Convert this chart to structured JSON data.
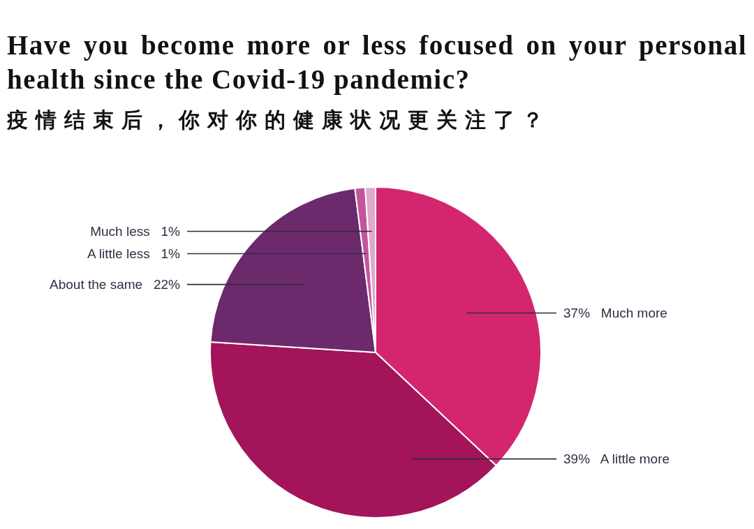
{
  "chart_data": {
    "type": "pie",
    "title": "Have you become more or less focused on your personal health since the Covid-19 pandemic?",
    "subtitle": "疫情结束后，你对你的健康状况更关注了？",
    "categories": [
      "Much more",
      "A little more",
      "About the same",
      "A little less",
      "Much less"
    ],
    "values": [
      37,
      39,
      22,
      1,
      1
    ],
    "value_labels": [
      "37%",
      "39%",
      "22%",
      "1%",
      "1%"
    ],
    "colors": [
      "#d3266f",
      "#a3145a",
      "#6c2a6c",
      "#c4559c",
      "#e2a8cd"
    ]
  }
}
